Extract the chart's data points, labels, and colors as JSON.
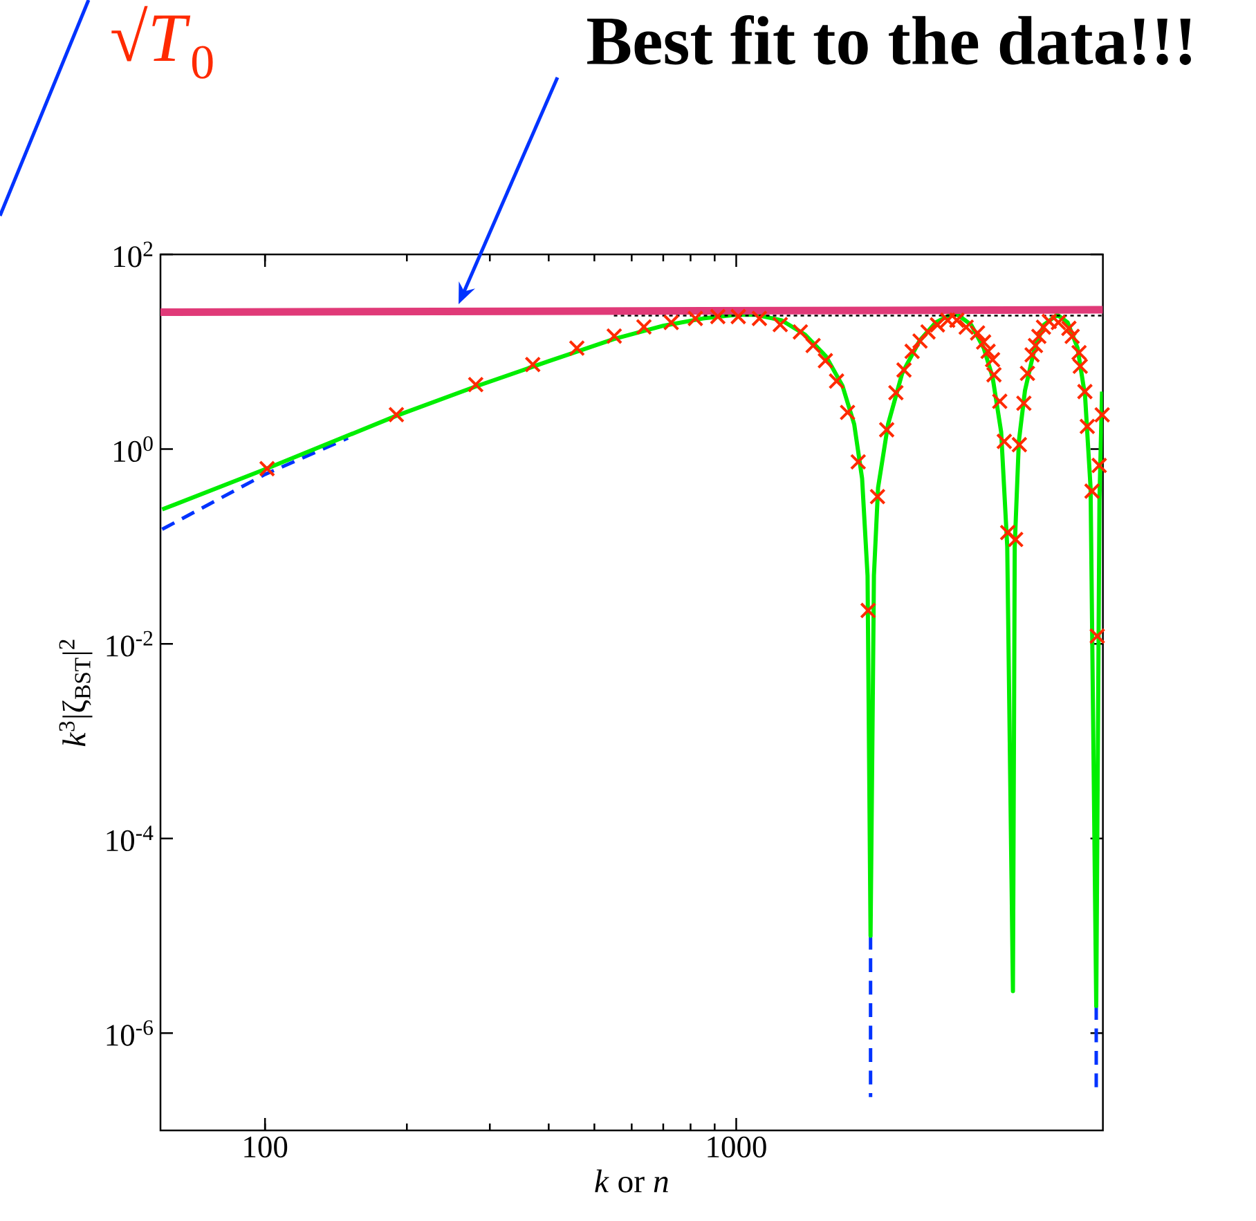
{
  "chart_data": {
    "type": "line",
    "xlabel": "*k*  or  *n*",
    "ylabel": "*k*$^{3}$|ζ$_{BST}$|$^{2}$",
    "log": "xy",
    "xlim": [
      60,
      6000
    ],
    "ylim": [
      1e-07,
      100
    ],
    "xticks": [
      100,
      1000
    ],
    "yticks": [
      {
        "value": 100,
        "label": "10$^{2}$"
      },
      {
        "value": 1,
        "label": "10$^{0}$"
      },
      {
        "value": 0.01,
        "label": "10$^{-2}$"
      },
      {
        "value": 0.0001,
        "label": "10$^{-4}$"
      },
      {
        "value": 1e-06,
        "label": "10$^{-6}$"
      }
    ],
    "annotations": [
      "Best fit to the data!!!",
      "√*T*$_{0}$"
    ],
    "series": [
      {
        "type": "scatter",
        "marker": "cross",
        "color": "#ff2a00",
        "x": [
          101,
          190,
          280,
          370,
          459,
          551,
          637,
          728,
          819,
          914,
          1010,
          1120,
          1240,
          1368,
          1456,
          1546,
          1633,
          1723,
          1815,
          1905,
          1995,
          2086,
          2182,
          2270,
          2362,
          2455,
          2553,
          2673,
          2811,
          2939,
          3076,
          3252,
          3350,
          3424,
          3500,
          3524,
          3625,
          3706,
          3768,
          3918,
          3990,
          4078,
          4150,
          4245,
          4316,
          4388,
          4488,
          4616,
          4827,
          5081,
          5164,
          5340,
          5372,
          5495,
          5559,
          5689,
          5836,
          5893,
          5980
        ],
        "values": [
          0.63,
          2.26,
          4.6,
          7.4,
          10.9,
          14.5,
          18,
          20,
          22,
          23,
          23,
          22,
          19,
          16,
          11.6,
          8.1,
          5.0,
          2.38,
          0.74,
          0.022,
          0.325,
          1.58,
          3.8,
          6.5,
          10.1,
          12.9,
          16,
          18.9,
          21.1,
          21.1,
          17.9,
          15.6,
          12.6,
          10.1,
          8.3,
          5.8,
          3.1,
          1.2,
          0.139,
          0.118,
          1.11,
          2.96,
          6.0,
          9.3,
          11.6,
          14.4,
          17.9,
          20.5,
          20,
          17.4,
          14.4,
          9.8,
          7.1,
          3.9,
          1.71,
          0.37,
          0.012,
          0.68,
          2.25
        ]
      },
      {
        "line_style": "dashed",
        "marker": "none",
        "color": "#0033ff",
        "x": [
          60.5,
          100,
          150,
          1000,
          1928,
          1928,
          4000,
          5808,
          5808
        ],
        "values": [
          0.15,
          0.55,
          1.3,
          null,
          1e-05,
          2.2e-07,
          null,
          1.9e-06,
          2.6e-07
        ]
      },
      {
        "line_style": "solid",
        "marker": "none",
        "color": "#00ee00",
        "x": [
          60.5,
          100,
          190,
          280,
          400,
          550,
          700,
          850,
          1000,
          1100,
          1250,
          1400,
          1550,
          1680,
          1780,
          1850,
          1900,
          1928,
          1960,
          2000,
          2100,
          2250,
          2450,
          2650,
          2850,
          2950,
          3150,
          3350,
          3500,
          3650,
          3760,
          3866,
          3900,
          3980,
          4100,
          4300,
          4500,
          4800,
          5050,
          5300,
          5500,
          5650,
          5808,
          5900,
          5975
        ],
        "values": [
          0.24,
          0.62,
          2.2,
          4.4,
          8,
          13.5,
          18.5,
          22,
          24,
          24,
          21,
          15,
          9,
          4.5,
          1.8,
          0.5,
          0.05,
          1e-05,
          0.05,
          0.4,
          1.8,
          6,
          13,
          20,
          24,
          24,
          19,
          11,
          5.5,
          1.5,
          0.1,
          2.7e-06,
          0.1,
          1.2,
          4,
          11,
          19,
          24,
          20,
          11,
          3.5,
          0.4,
          1.9e-06,
          0.3,
          3.9
        ]
      },
      {
        "line_style": "dotted",
        "marker": "none",
        "color": "#000000",
        "x": [
          550,
          6000
        ],
        "values": [
          23.5,
          23.5
        ]
      },
      {
        "line_style": "solid",
        "marker": "none",
        "color": "#e03a78",
        "x": [
          60,
          6000
        ],
        "values": [
          25.5,
          27
        ]
      }
    ]
  }
}
